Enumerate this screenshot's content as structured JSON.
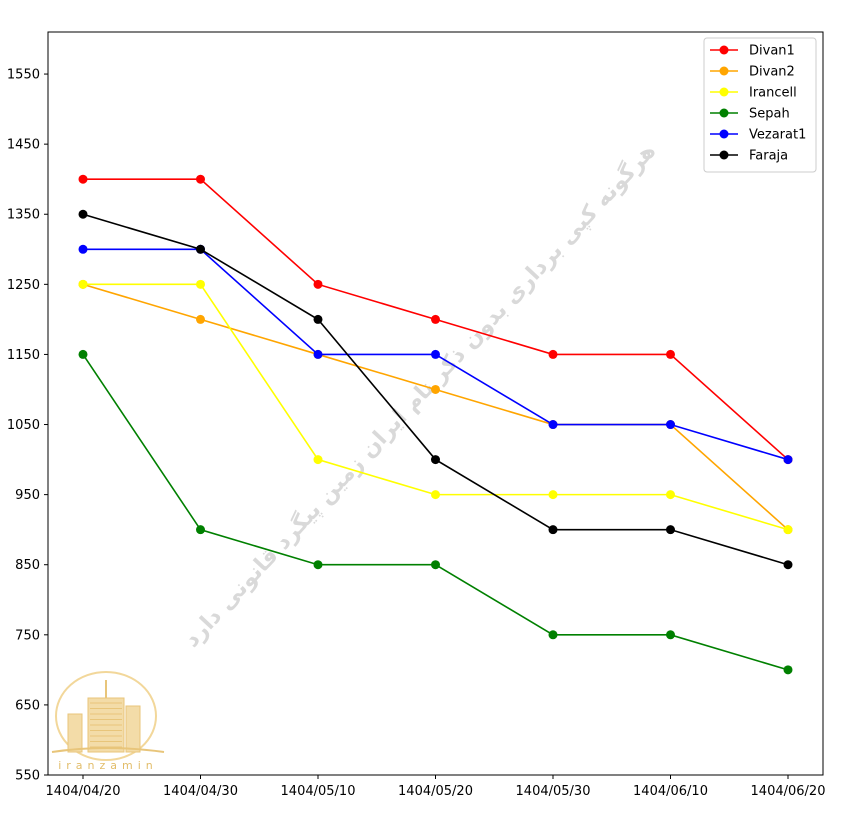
{
  "chart_data": {
    "type": "line",
    "categories": [
      "1404/04/20",
      "1404/04/30",
      "1404/05/10",
      "1404/05/20",
      "1404/05/30",
      "1404/06/10",
      "1404/06/20"
    ],
    "yticks": [
      550,
      650,
      750,
      850,
      950,
      1050,
      1150,
      1250,
      1350,
      1450,
      1550
    ],
    "ylim": [
      550,
      1610
    ],
    "grid": false,
    "legend_position": "top-right",
    "series": [
      {
        "name": "Divan1",
        "color": "#ff0000",
        "values": [
          1400,
          1400,
          1250,
          1200,
          1150,
          1150,
          1000
        ]
      },
      {
        "name": "Divan2",
        "color": "#ffa500",
        "values": [
          1250,
          1200,
          1150,
          1100,
          1050,
          1050,
          900
        ]
      },
      {
        "name": "Irancell",
        "color": "#ffff00",
        "values": [
          1250,
          1250,
          1000,
          950,
          950,
          950,
          900
        ]
      },
      {
        "name": "Sepah",
        "color": "#008000",
        "values": [
          1150,
          900,
          850,
          850,
          750,
          750,
          700
        ]
      },
      {
        "name": "Vezarat1",
        "color": "#0000ff",
        "values": [
          1300,
          1300,
          1150,
          1150,
          1050,
          1050,
          1000
        ]
      },
      {
        "name": "Faraja",
        "color": "#000000",
        "values": [
          1350,
          1300,
          1200,
          1000,
          900,
          900,
          850
        ]
      }
    ]
  },
  "watermark": {
    "text": "هرگونه کپی برداری بدون ذکر نام ایران زمین پیگرد قانونی دارد",
    "logo_text": "iranzamin"
  }
}
